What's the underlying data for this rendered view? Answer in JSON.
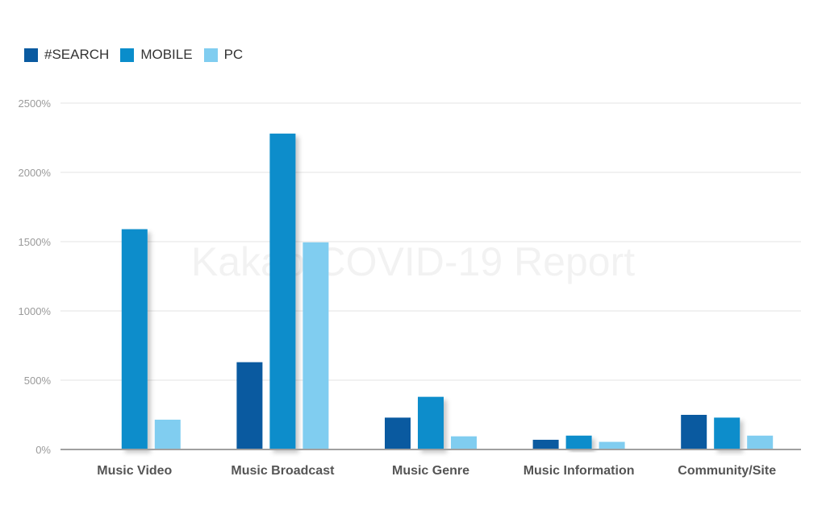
{
  "colors": {
    "search": "#0a5aa0",
    "mobile": "#0a8dcb",
    "pc": "#80cdf0",
    "grid": "#e3e3e3",
    "axis": "#a0a0a0"
  },
  "watermark": "Kakao COVID-19 Report",
  "chart_data": {
    "type": "bar",
    "categories": [
      "Music Video",
      "Music Broadcast",
      "Music Genre",
      "Music Information",
      "Community/Site"
    ],
    "series": [
      {
        "name": "#SEARCH",
        "values": [
          null,
          630,
          230,
          70,
          250
        ]
      },
      {
        "name": "MOBILE",
        "values": [
          1590,
          2280,
          380,
          100,
          230
        ]
      },
      {
        "name": "PC",
        "values": [
          215,
          1495,
          95,
          55,
          100
        ]
      }
    ],
    "yticks": [
      "0%",
      "500%",
      "1000%",
      "1500%",
      "2000%",
      "2500%"
    ],
    "ylim": [
      0,
      2500
    ],
    "grid": true,
    "legend_position": "top-left"
  }
}
